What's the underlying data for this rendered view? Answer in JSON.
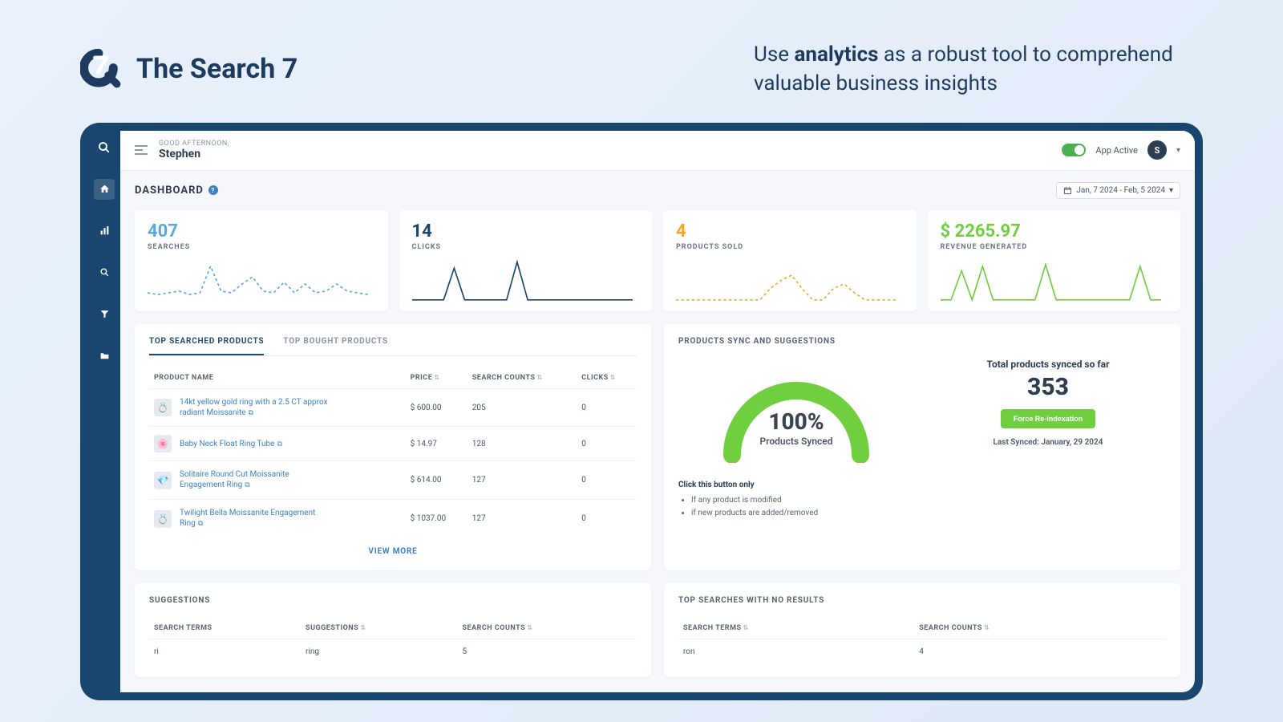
{
  "brand": {
    "name": "The Search 7",
    "tagline_pre": "Use ",
    "tagline_bold": "analytics",
    "tagline_post": " as a robust tool to comprehend valuable business insights"
  },
  "colors": {
    "frame": "#18466f",
    "bg": "#f5f7fa",
    "blue": "#3b82c4",
    "orange": "#f5a623",
    "green": "#6fcf3f",
    "dark": "#2c3e50",
    "toggle_green": "#4caf50"
  },
  "topbar": {
    "greeting_label": "GOOD AFTERNOON,",
    "greeting_name": "Stephen",
    "app_active_label": "App Active",
    "avatar_initial": "S"
  },
  "page": {
    "title": "DASHBOARD",
    "date_range": "Jan, 7 2024 - Feb, 5 2024"
  },
  "kpis": [
    {
      "value": "407",
      "label": "SEARCHES",
      "color": "#5aa7e0",
      "dash": true,
      "points": [
        40,
        42,
        40,
        38,
        42,
        40,
        10,
        38,
        40,
        30,
        22,
        38,
        40,
        28,
        40,
        30,
        40,
        38,
        30,
        38,
        40,
        42
      ]
    },
    {
      "value": "14",
      "label": "CLICKS",
      "color": "#18466f",
      "dash": false,
      "points": [
        48,
        48,
        48,
        48,
        12,
        48,
        48,
        48,
        48,
        48,
        5,
        48,
        48,
        48,
        48,
        48,
        48,
        48,
        48,
        48,
        48,
        48
      ]
    },
    {
      "value": "4",
      "label": "PRODUCTS SOLD",
      "color": "#f5a623",
      "dash": true,
      "points": [
        48,
        48,
        48,
        48,
        48,
        48,
        48,
        48,
        48,
        35,
        26,
        20,
        35,
        48,
        48,
        35,
        30,
        40,
        48,
        48,
        48,
        48
      ]
    },
    {
      "value": "$ 2265.97",
      "label": "REVENUE GENERATED",
      "color": "#6fcf3f",
      "dash": false,
      "points": [
        48,
        48,
        15,
        48,
        10,
        48,
        48,
        48,
        48,
        48,
        8,
        48,
        48,
        48,
        48,
        48,
        48,
        48,
        48,
        10,
        48,
        48
      ]
    }
  ],
  "productsPanel": {
    "tabs": [
      {
        "label": "TOP SEARCHED PRODUCTS",
        "active": true
      },
      {
        "label": "TOP BOUGHT PRODUCTS",
        "active": false
      }
    ],
    "columns": [
      "PRODUCT NAME",
      "PRICE",
      "SEARCH COUNTS",
      "CLICKS"
    ],
    "rows": [
      {
        "name": "14kt yellow gold ring with a 2.5 CT approx radiant Moissanite",
        "price": "$ 600.00",
        "searches": "205",
        "clicks": "0",
        "thumb": "💍"
      },
      {
        "name": "Baby Neck Float Ring Tube",
        "price": "$ 14.97",
        "searches": "128",
        "clicks": "0",
        "thumb": "🌸"
      },
      {
        "name": "Solitaire Round Cut Moissanite Engagement Ring",
        "price": "$ 614.00",
        "searches": "127",
        "clicks": "0",
        "thumb": "💎"
      },
      {
        "name": "Twilight Bella Moissanite Engagement Ring",
        "price": "$ 1037.00",
        "searches": "127",
        "clicks": "0",
        "thumb": "💍"
      }
    ],
    "view_more": "VIEW MORE"
  },
  "syncPanel": {
    "title": "PRODUCTS SYNC AND SUGGESTIONS",
    "gauge_pct": "100%",
    "gauge_label": "Products Synced",
    "right_title": "Total products synced so far",
    "total": "353",
    "button": "Force Re-indexation",
    "last_synced": "Last Synced: January, 29 2024",
    "note_title": "Click this button only",
    "notes": [
      "If any product is modified",
      "if new products are added/removed"
    ]
  },
  "suggestionsPanel": {
    "title": "SUGGESTIONS",
    "columns": [
      "SEARCH TERMS",
      "SUGGESTIONS",
      "SEARCH COUNTS"
    ],
    "rows": [
      {
        "term": "ri",
        "suggestion": "ring",
        "count": "5"
      }
    ]
  },
  "noResultsPanel": {
    "title": "TOP SEARCHES WITH NO RESULTS",
    "columns": [
      "SEARCH TERMS",
      "SEARCH COUNTS"
    ],
    "rows": [
      {
        "term": "ron",
        "count": "4"
      }
    ]
  }
}
